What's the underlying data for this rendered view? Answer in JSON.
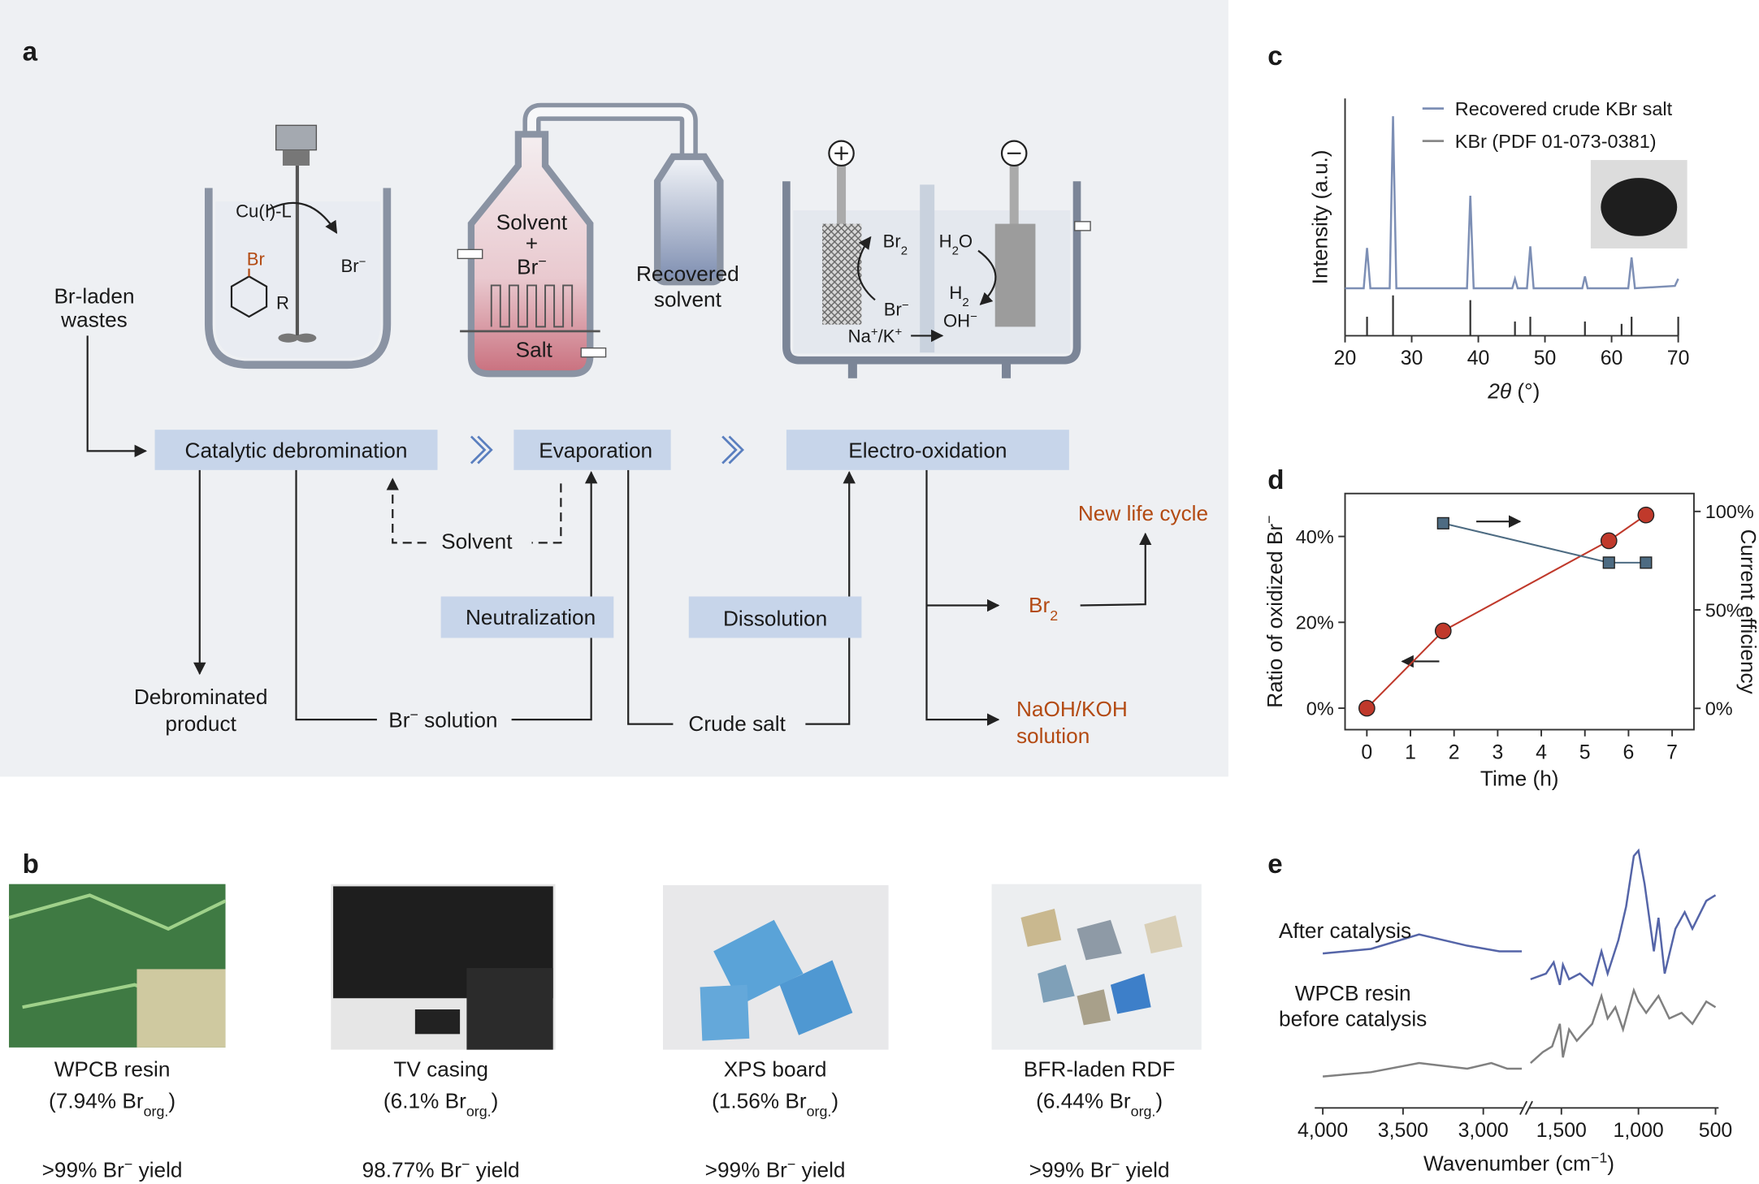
{
  "panel_a": {
    "label": "a",
    "reactor1": {
      "catalyst": "Cu(I)-L",
      "substituent": "Br",
      "group": "R",
      "product": [
        "Br",
        {
          "sup": "−"
        }
      ]
    },
    "evaporator": {
      "top": "Solvent",
      "plus": "+",
      "ion": [
        "Br",
        {
          "sup": "−"
        }
      ],
      "bottom": "Salt",
      "condenser": [
        "Recovered",
        "solvent"
      ]
    },
    "cell": {
      "anode_product": [
        "Br",
        {
          "sub": "2"
        }
      ],
      "cathode_reactant": [
        "H",
        {
          "sub": "2"
        },
        "O"
      ],
      "anode_reactant": [
        "Br",
        {
          "sup": "−"
        }
      ],
      "cathode_product_1": [
        "H",
        {
          "sub": "2"
        }
      ],
      "cathode_product_2": [
        "OH",
        {
          "sup": "−"
        }
      ],
      "migration": [
        "Na",
        {
          "sup": "+"
        },
        "/K",
        {
          "sup": "+"
        }
      ]
    },
    "input": [
      "Br-laden",
      "wastes"
    ],
    "steps": [
      "Catalytic debromination",
      "Evaporation",
      "Electro-oxidation"
    ],
    "recycle": "Solvent",
    "aux_steps": [
      "Neutralization",
      "Dissolution"
    ],
    "outputs": {
      "new_cycle": "New life cycle",
      "bromine": [
        "Br",
        {
          "sub": "2"
        }
      ],
      "debrominated_product": [
        "Debrominated",
        "product"
      ],
      "bromide_solution": [
        "Br",
        {
          "sup": "−"
        },
        " solution"
      ],
      "crude_salt": "Crude salt",
      "base_solution": [
        "NaOH/KOH",
        "solution"
      ]
    }
  },
  "panel_b": {
    "label": "b",
    "items": [
      {
        "name": "WPCB resin",
        "composition": [
          "(7.94% Br",
          {
            "sub": "org."
          },
          ")"
        ],
        "yield": [
          ">99% Br",
          {
            "sup": "−"
          },
          " yield"
        ]
      },
      {
        "name": "TV casing",
        "composition": [
          "(6.1% Br",
          {
            "sub": "org."
          },
          ")"
        ],
        "yield": [
          "98.77% Br",
          {
            "sup": "−"
          },
          " yield"
        ]
      },
      {
        "name": "XPS board",
        "composition": [
          "(1.56% Br",
          {
            "sub": "org."
          },
          ")"
        ],
        "yield": [
          ">99% Br",
          {
            "sup": "−"
          },
          " yield"
        ]
      },
      {
        "name": "BFR-laden RDF",
        "composition": [
          "(6.44% Br",
          {
            "sub": "org."
          },
          ")"
        ],
        "yield": [
          ">99% Br",
          {
            "sup": "−"
          },
          " yield"
        ]
      }
    ]
  },
  "chart_data": [
    {
      "label": "c",
      "type": "line",
      "xlabel": [
        {
          "italic": "2θ"
        },
        " (°)"
      ],
      "ylabel": "Intensity (a.u.)",
      "xlim": [
        20,
        70
      ],
      "xticks": [
        20,
        30,
        40,
        50,
        60,
        70
      ],
      "ylim": [
        0,
        100
      ],
      "legend": "upper right",
      "x": [
        20,
        22.8,
        23.3,
        23.8,
        26.7,
        27.2,
        27.7,
        38.3,
        38.8,
        39.3,
        45.1,
        45.5,
        45.9,
        47.3,
        47.8,
        48.3,
        55.6,
        56,
        56.4,
        62.5,
        63,
        63.5,
        69.5,
        70
      ],
      "series": [
        {
          "name": "Recovered crude KBr salt",
          "color": "#7d8fb5",
          "values": [
            20,
            20,
            37,
            20,
            20,
            92.5,
            20,
            20,
            59,
            20,
            20,
            24,
            20,
            20,
            37.7,
            20,
            20,
            25,
            20,
            20,
            33,
            20,
            21,
            24
          ]
        }
      ],
      "reference": {
        "name": "KBr (PDF 01-073-0381)",
        "color": "#333333",
        "x": [
          23.3,
          27.2,
          38.8,
          45.5,
          47.8,
          56,
          61.5,
          63,
          70
        ],
        "values": [
          8,
          17,
          15,
          6,
          8,
          6,
          5,
          8,
          8
        ]
      }
    },
    {
      "label": "d",
      "type": "scatter",
      "xlabel": "Time (h)",
      "ylabel": [
        "Ratio of oxidized Br",
        {
          "sup": "−"
        }
      ],
      "y2label": "Current efficiency",
      "xlim": [
        -0.5,
        7.5
      ],
      "xticks": [
        0,
        1,
        2,
        3,
        4,
        5,
        6,
        7
      ],
      "ylim": [
        -5,
        50
      ],
      "yticks": [
        {
          "value": 0,
          "label": "0%"
        },
        {
          "value": 20,
          "label": "20%"
        },
        {
          "value": 40,
          "label": "40%"
        }
      ],
      "y2lim": [
        -10.8,
        109.1
      ],
      "y2ticks": [
        {
          "value": 0,
          "label": "0%"
        },
        {
          "value": 50,
          "label": "50%"
        },
        {
          "value": 100,
          "label": "100%"
        }
      ],
      "series": [
        {
          "color": "#c0392b",
          "marker": "circle",
          "x": [
            0,
            1.75,
            5.55,
            6.4
          ],
          "values": [
            0,
            18,
            39,
            45
          ]
        },
        {
          "color": "#4d6b82",
          "marker": "square",
          "axis": "y2",
          "x": [
            1.75,
            5.55,
            6.4
          ],
          "values": [
            94,
            74,
            74
          ]
        }
      ]
    },
    {
      "label": "e",
      "type": "line",
      "xlabel": [
        "Wavenumber (cm",
        {
          "sup": "−1"
        },
        ")"
      ],
      "xlim": [
        4050,
        480
      ],
      "axis_break": [
        2750,
        1710
      ],
      "xticks": [
        {
          "value": 4000,
          "label": "4,000"
        },
        {
          "value": 3500,
          "label": "3,500"
        },
        {
          "value": 3000,
          "label": "3,000"
        },
        {
          "value": 1500,
          "label": "1,500"
        },
        {
          "value": 1000,
          "label": "1,000"
        },
        500
      ],
      "ylim": [
        0,
        100
      ],
      "series": [
        {
          "name": "After catalysis",
          "color": "#5565a8",
          "x": [
            4000,
            3700,
            3400,
            3100,
            2900,
            2760,
            1700,
            1600,
            1550,
            1510,
            1490,
            1450,
            1380,
            1300,
            1240,
            1200,
            1130,
            1080,
            1030,
            1000,
            960,
            900,
            870,
            830,
            760,
            700,
            650,
            560,
            500
          ],
          "values": [
            57.5,
            59.2,
            64.6,
            60.4,
            58.3,
            58.3,
            47.9,
            50,
            54.2,
            45.8,
            53.3,
            47.9,
            50,
            45.8,
            58.3,
            50,
            62.5,
            75,
            93.8,
            95.8,
            83.3,
            58.3,
            70.8,
            50,
            66.7,
            72.9,
            66.7,
            77.1,
            79.2
          ]
        },
        {
          "name": "WPCB resin before catalysis",
          "color": "#808080",
          "x": [
            4000,
            3700,
            3400,
            3100,
            2950,
            2850,
            2760,
            1700,
            1620,
            1560,
            1510,
            1490,
            1450,
            1400,
            1300,
            1240,
            1200,
            1150,
            1100,
            1030,
            1000,
            950,
            870,
            800,
            720,
            650,
            560,
            500
          ],
          "values": [
            11.7,
            13.3,
            16.7,
            14.6,
            16.7,
            14.6,
            14.6,
            16.7,
            20.8,
            22.9,
            31.3,
            18.8,
            29.2,
            25,
            31.3,
            41.7,
            33.3,
            37.5,
            29.2,
            43.8,
            39.6,
            35.4,
            41.7,
            33.3,
            35.4,
            31.3,
            39.6,
            37.5
          ]
        }
      ]
    }
  ]
}
